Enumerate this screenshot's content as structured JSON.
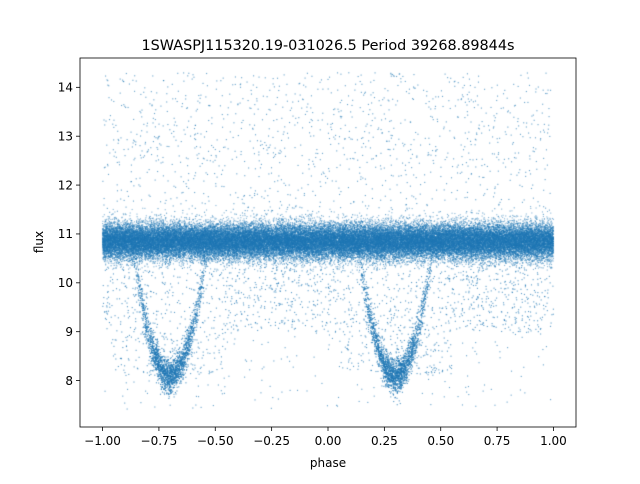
{
  "chart_data": {
    "type": "scatter",
    "title": "1SWASPJ115320.19-031026.5 Period 39268.89844s",
    "xlabel": "phase",
    "ylabel": "flux",
    "xlim": [
      -1.1,
      1.1
    ],
    "ylim": [
      7.05,
      14.6
    ],
    "xticks": [
      -1.0,
      -0.75,
      -0.5,
      -0.25,
      0.0,
      0.25,
      0.5,
      0.75,
      1.0
    ],
    "xtick_labels": [
      "−1.00",
      "−0.75",
      "−0.50",
      "−0.25",
      "0.00",
      "0.25",
      "0.50",
      "0.75",
      "1.00"
    ],
    "yticks": [
      8,
      9,
      10,
      11,
      12,
      13,
      14
    ],
    "ytick_labels": [
      "8",
      "9",
      "10",
      "11",
      "12",
      "13",
      "14"
    ],
    "grid": false,
    "marker_color": "#1f77b4",
    "x_range": [
      -1.0,
      1.0
    ],
    "period_phase": 1.0,
    "baseline_flux": 10.85,
    "baseline_spread": 0.18,
    "eclipse_center_phases": [
      -0.7,
      0.3
    ],
    "eclipse_min_flux": 8.1,
    "outlier_range": [
      7.4,
      14.3
    ]
  }
}
